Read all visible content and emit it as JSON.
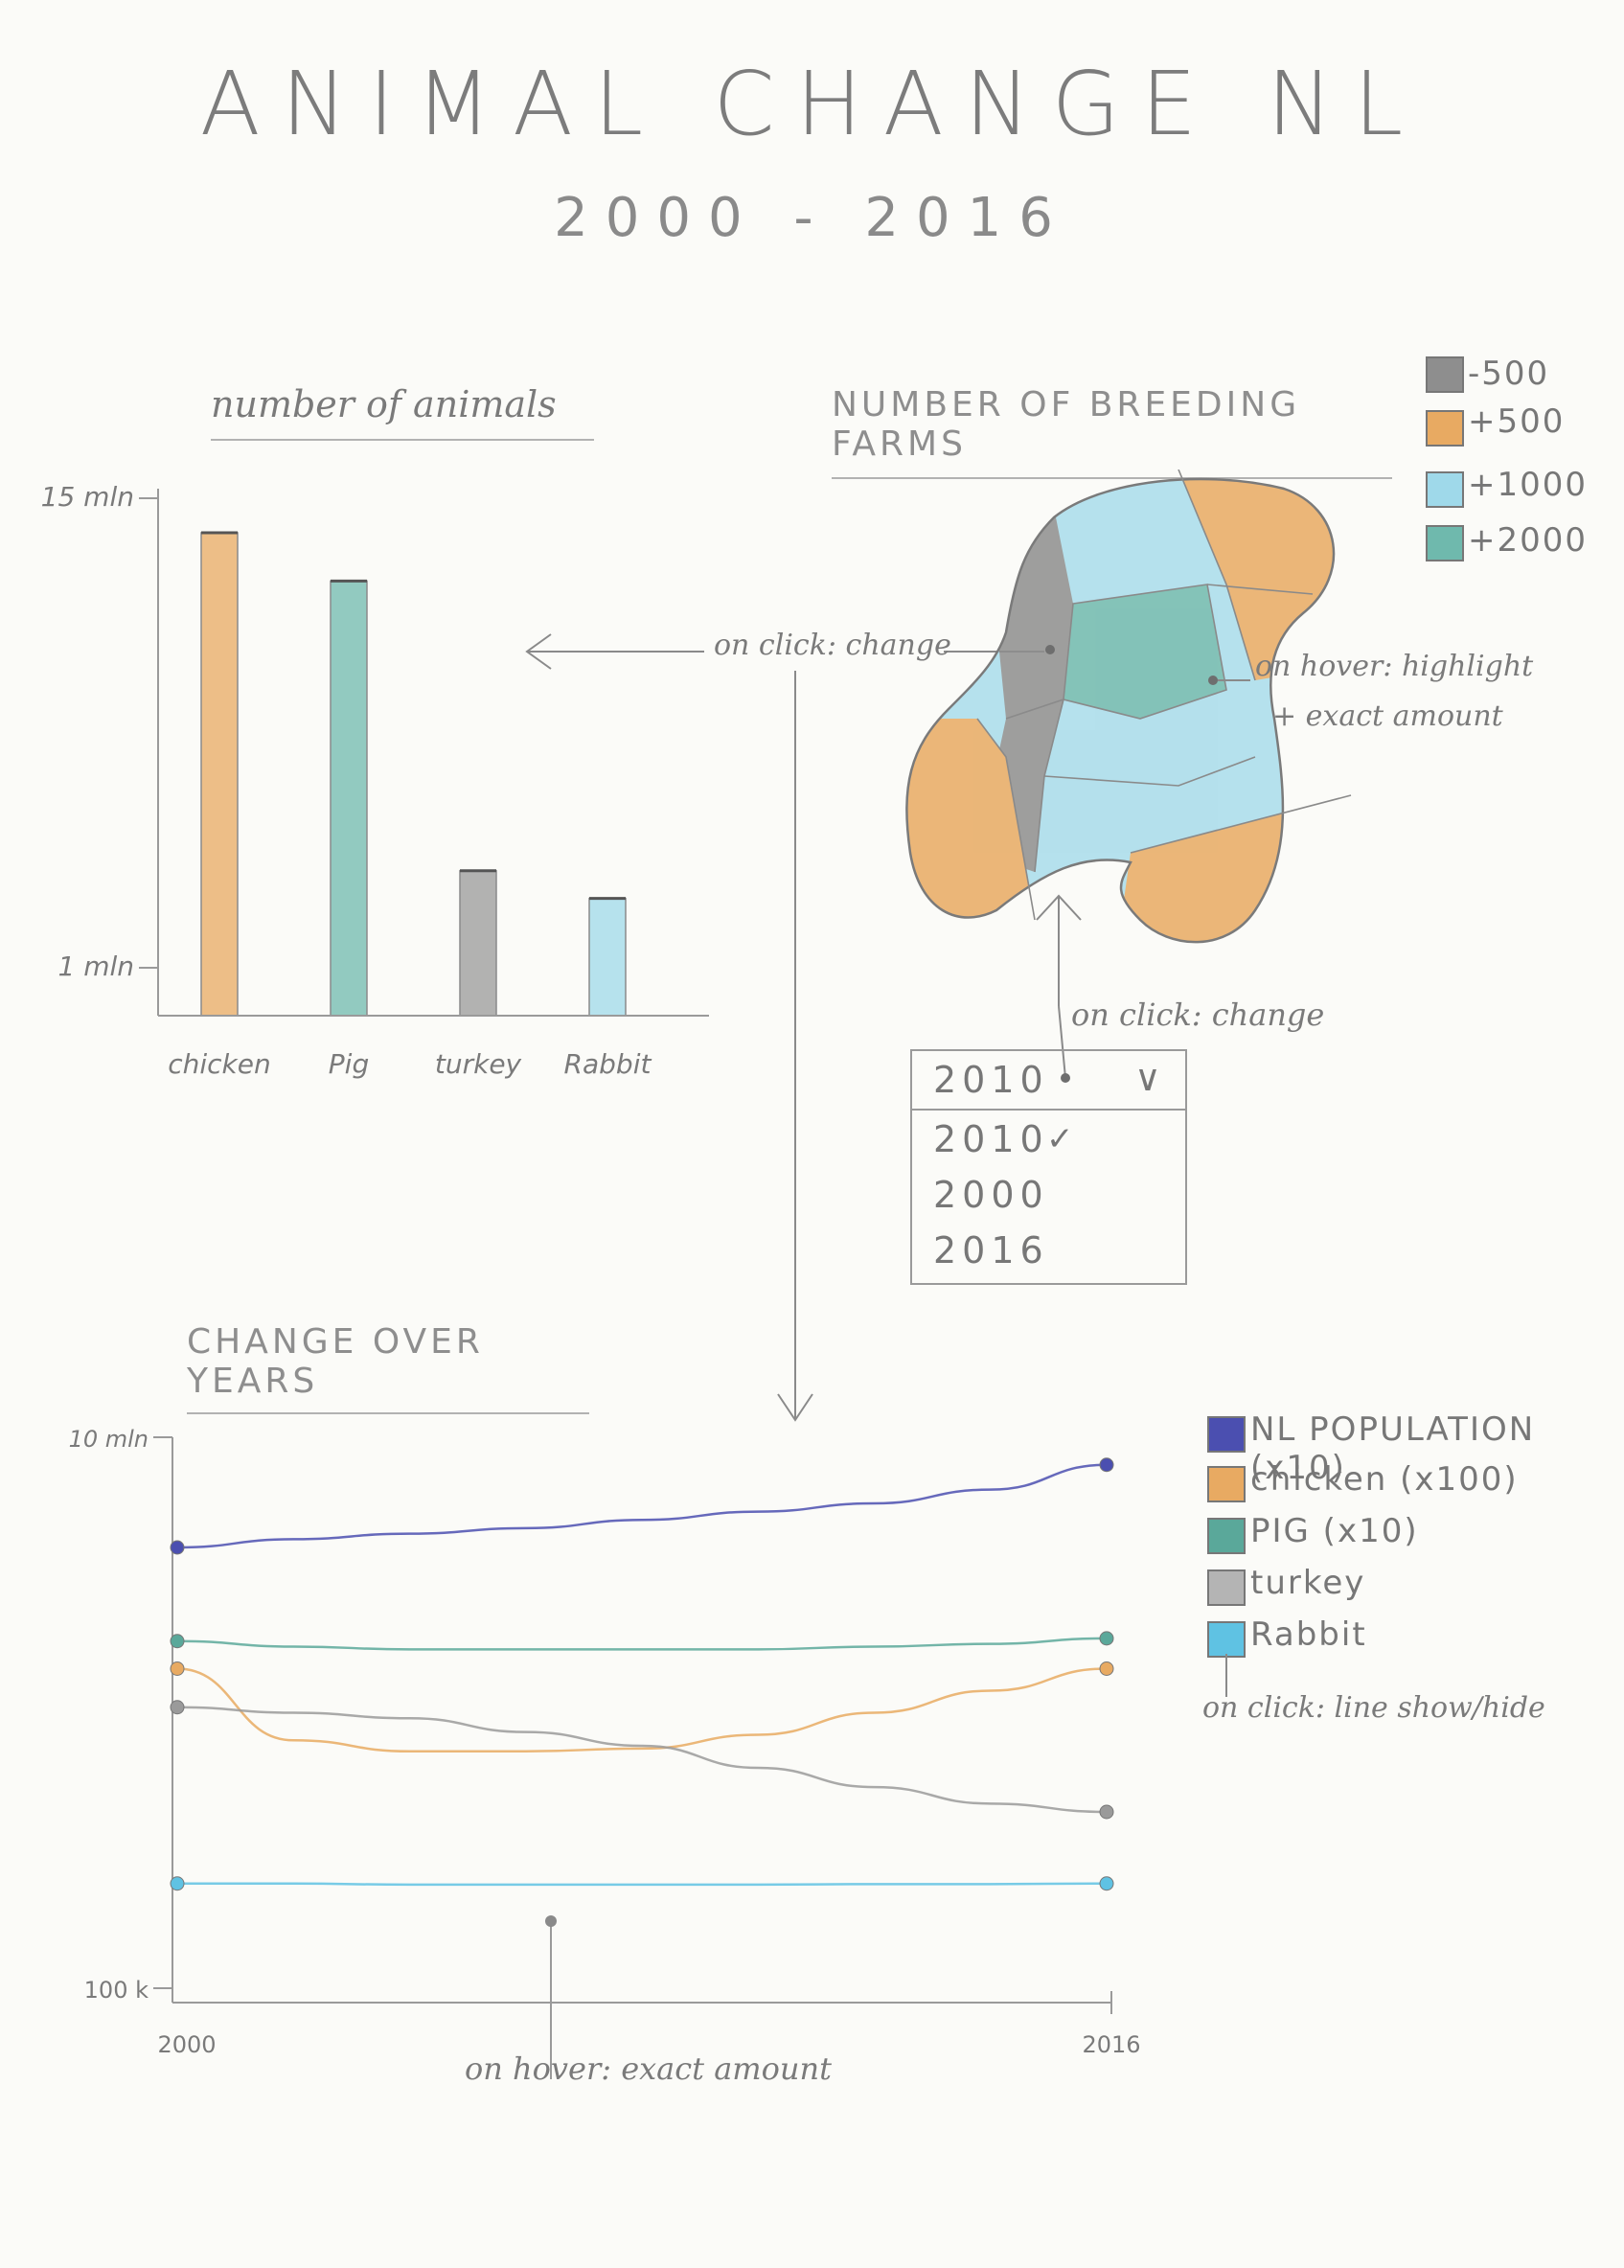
{
  "header": {
    "title": "ANIMAL CHANGE NL",
    "subtitle": "2000 - 2016"
  },
  "bar_section": {
    "heading": "number of animals",
    "y_ticks": [
      "15 mln",
      "1 mln"
    ],
    "categories": [
      "chicken",
      "Pig",
      "turkey",
      "Rabbit"
    ]
  },
  "annotations": {
    "bar_click": "on click: change",
    "map_hover_1": "on hover: highlight",
    "map_hover_2": "+ exact amount",
    "dropdown_click": "on click: change",
    "line_hover": "on hover: exact amount",
    "legend_click": "on click: line show/hide"
  },
  "map_section": {
    "heading": "NUMBER OF BREEDING FARMS",
    "legend": [
      {
        "label": "-500",
        "color": "#8e8e8e"
      },
      {
        "label": "+500",
        "color": "#e8aa62"
      },
      {
        "label": "+1000",
        "color": "#9fd9ea"
      },
      {
        "label": "+2000",
        "color": "#6fb9ad"
      }
    ]
  },
  "year_select": {
    "selected": "2010",
    "options": [
      "2010",
      "2000",
      "2016"
    ]
  },
  "line_section": {
    "heading": "CHANGE OVER YEARS",
    "y_ticks": [
      "10 mln",
      "100 k"
    ],
    "x_ticks": [
      "2000",
      "2016"
    ],
    "legend": [
      {
        "label": "NL POPULATION (x10)",
        "color": "#4b4fb0"
      },
      {
        "label": "chicken (x100)",
        "color": "#e8aa62"
      },
      {
        "label": "PIG (x10)",
        "color": "#5aa89a"
      },
      {
        "label": "turkey",
        "color": "#9a9a9a"
      },
      {
        "label": "Rabbit",
        "color": "#5fc2e3"
      }
    ]
  },
  "chart_data": [
    {
      "type": "bar",
      "title": "number of animals",
      "categories": [
        "chicken",
        "Pig",
        "turkey",
        "Rabbit"
      ],
      "values": [
        14.0,
        12.6,
        4.2,
        3.4
      ],
      "ylim": [
        0,
        15
      ],
      "colors": [
        "#e8aa62",
        "#6fb9ad",
        "#9a9a9a",
        "#9fd9ea"
      ]
    },
    {
      "type": "line",
      "title": "CHANGE OVER YEARS",
      "x": [
        2000,
        2002,
        2004,
        2006,
        2008,
        2010,
        2012,
        2014,
        2016
      ],
      "ylim": [
        0,
        100
      ],
      "series": [
        {
          "name": "NL POPULATION (x10)",
          "color": "#4b4fb0",
          "values": [
            80,
            81.5,
            82.5,
            83.5,
            85,
            86.5,
            88,
            90.5,
            95
          ]
        },
        {
          "name": "PIG (x10)",
          "color": "#5aa89a",
          "values": [
            63,
            62,
            61.5,
            61.5,
            61.5,
            61.5,
            62,
            62.5,
            63.5
          ]
        },
        {
          "name": "chicken (x100)",
          "color": "#e8aa62",
          "values": [
            58,
            45,
            43,
            43,
            43.5,
            46,
            50,
            54,
            58
          ]
        },
        {
          "name": "turkey",
          "color": "#9a9a9a",
          "values": [
            51,
            50,
            49,
            46.5,
            44,
            40,
            36.5,
            33.5,
            32
          ]
        },
        {
          "name": "Rabbit",
          "color": "#5fc2e3",
          "values": [
            19,
            19,
            18.8,
            18.8,
            18.8,
            18.8,
            18.9,
            18.9,
            19
          ]
        }
      ]
    }
  ]
}
